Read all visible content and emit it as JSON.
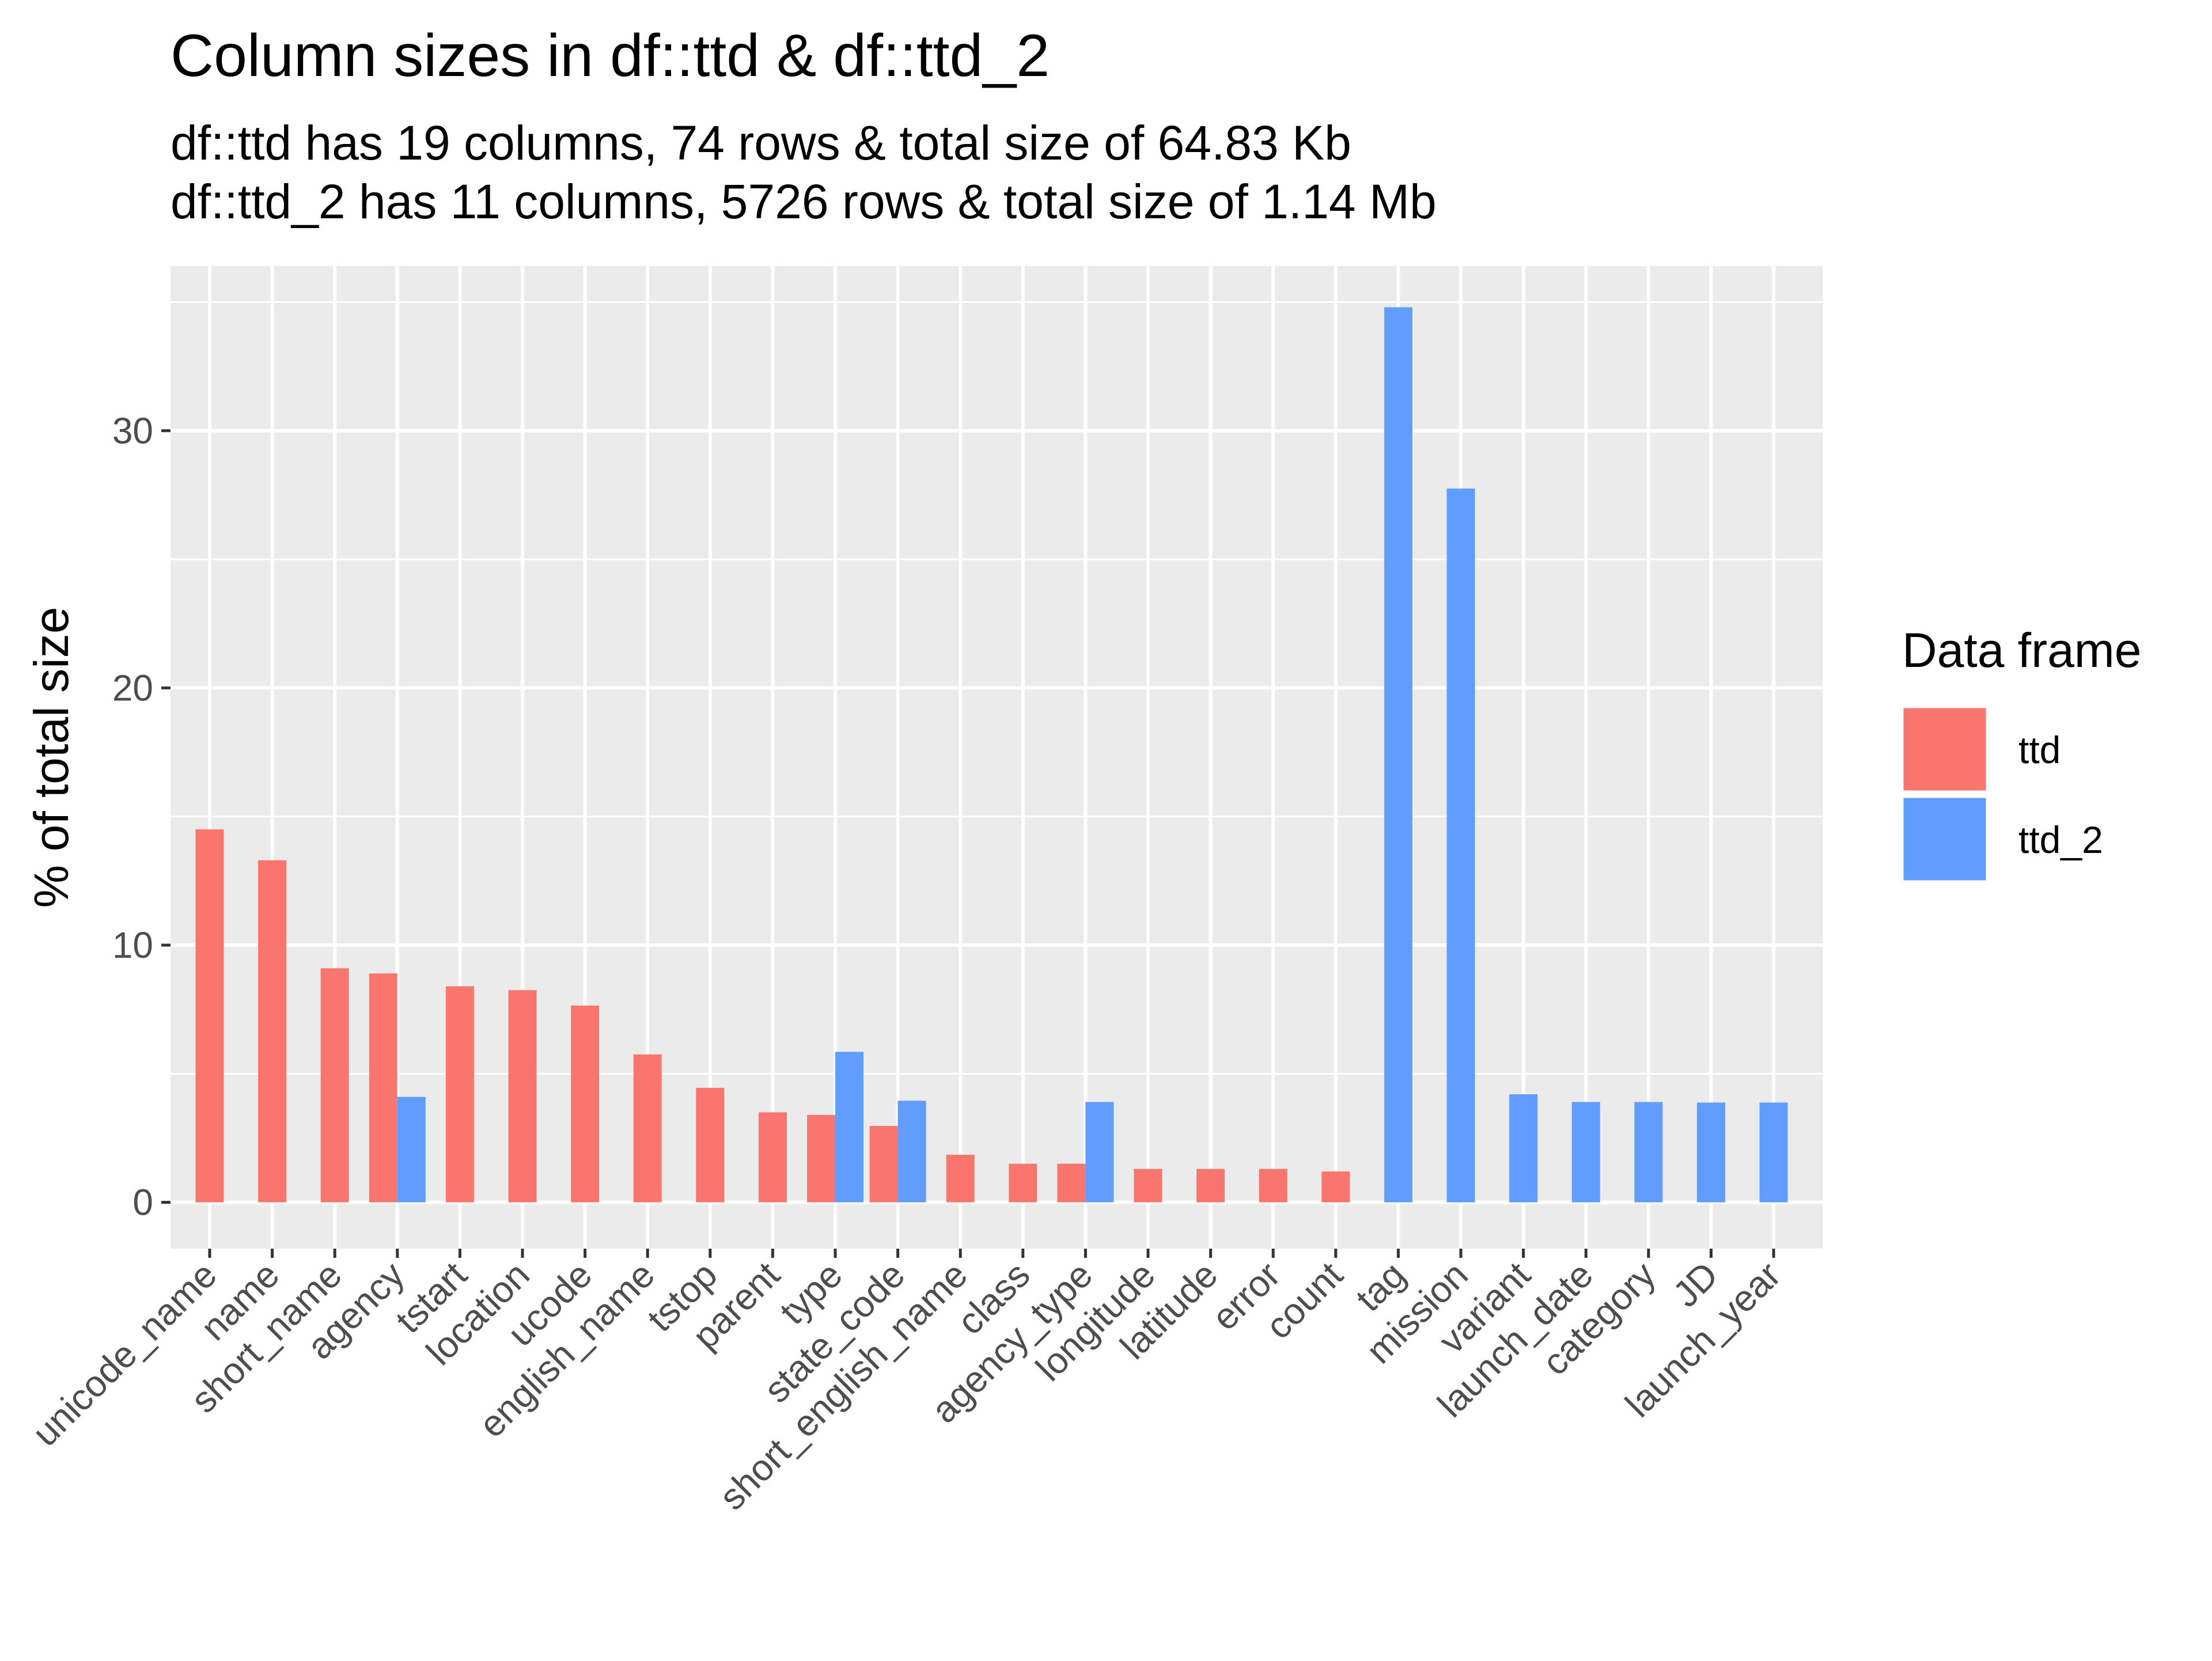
{
  "chart_data": {
    "type": "bar",
    "title": "Column sizes in df::ttd & df::ttd_2",
    "subtitle": [
      "df::ttd has 19 columns, 74 rows & total size of 64.83 Kb",
      "df::ttd_2 has 11 columns, 5726 rows & total size of 1.14 Mb"
    ],
    "xlabel": "",
    "ylabel": "% of total size",
    "ylim": [
      -1.8,
      36.4
    ],
    "yticks": [
      0,
      10,
      20,
      30
    ],
    "grid": true,
    "legend": {
      "title": "Data frame",
      "position": "right"
    },
    "categories": [
      "unicode_name",
      "name",
      "short_name",
      "agency",
      "tstart",
      "location",
      "ucode",
      "english_name",
      "tstop",
      "parent",
      "type",
      "state_code",
      "short_english_name",
      "class",
      "agency_type",
      "longitude",
      "latitude",
      "error",
      "count",
      "tag",
      "mission",
      "variant",
      "launch_date",
      "category",
      "JD",
      "launch_year"
    ],
    "series": [
      {
        "name": "ttd",
        "color": "#F8766D",
        "values": [
          14.5,
          13.3,
          9.1,
          8.9,
          8.4,
          8.25,
          7.65,
          5.75,
          4.45,
          3.5,
          3.4,
          2.97,
          1.85,
          1.5,
          1.5,
          1.3,
          1.3,
          1.3,
          1.2,
          null,
          null,
          null,
          null,
          null,
          null,
          null
        ]
      },
      {
        "name": "ttd_2",
        "color": "#619CFF",
        "values": [
          null,
          null,
          null,
          4.1,
          null,
          null,
          null,
          null,
          null,
          null,
          5.85,
          3.95,
          null,
          null,
          3.9,
          null,
          null,
          null,
          null,
          34.8,
          27.75,
          4.2,
          3.9,
          3.9,
          3.88,
          3.88
        ]
      }
    ]
  }
}
